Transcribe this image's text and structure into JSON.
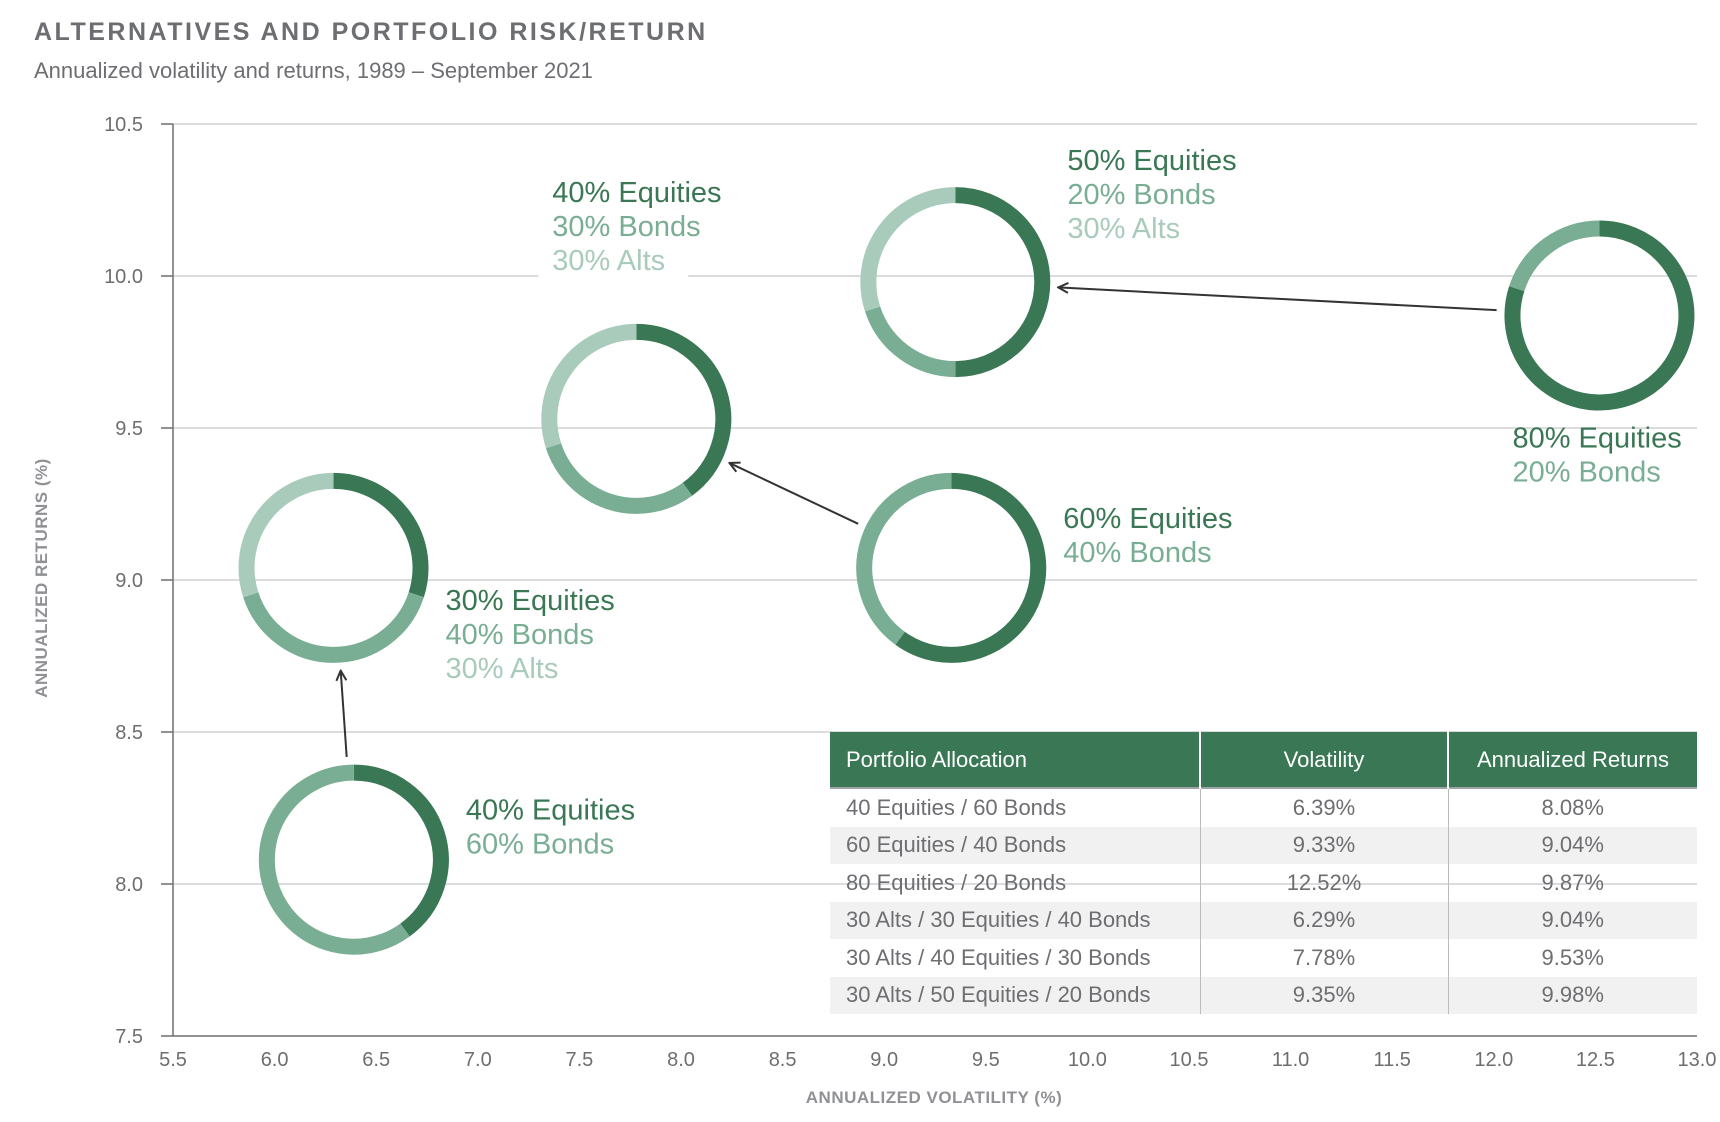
{
  "header": {
    "title": "ALTERNATIVES AND PORTFOLIO RISK/RETURN",
    "subtitle": "Annualized volatility and returns, 1989 – September 2021"
  },
  "colors": {
    "equities": "#3a7754",
    "bonds": "#79ae94",
    "alts": "#a9cbbb",
    "gridline": "#cfd0d2",
    "axis": "#6d6e71",
    "arrow": "#333333"
  },
  "chart_data": {
    "type": "scatter",
    "xlabel": "ANNUALIZED VOLATILITY (%)",
    "ylabel": "ANNUALIZED RETURNS (%)",
    "xlim": [
      5.5,
      13.0
    ],
    "ylim": [
      7.5,
      10.5
    ],
    "x_ticks": [
      "5.5",
      "6.0",
      "6.5",
      "7.0",
      "7.5",
      "8.0",
      "8.5",
      "9.0",
      "9.5",
      "10.0",
      "10.5",
      "11.0",
      "11.5",
      "12.0",
      "12.5",
      "13.0"
    ],
    "y_ticks": [
      "7.5",
      "8.0",
      "8.5",
      "9.0",
      "9.5",
      "10.0",
      "10.5"
    ],
    "grid": "horizontal",
    "points": [
      {
        "x": 6.39,
        "y": 8.08,
        "equities": 40,
        "bonds": 60,
        "alts": 0,
        "label_lines": [
          "40% Equities",
          "60% Bonds"
        ],
        "label_side": "right"
      },
      {
        "x": 9.33,
        "y": 9.04,
        "equities": 60,
        "bonds": 40,
        "alts": 0,
        "label_lines": [
          "60% Equities",
          "40% Bonds"
        ],
        "label_side": "right"
      },
      {
        "x": 12.52,
        "y": 9.87,
        "equities": 80,
        "bonds": 20,
        "alts": 0,
        "label_lines": [
          "80% Equities",
          "20% Bonds"
        ],
        "label_side": "below"
      },
      {
        "x": 6.29,
        "y": 9.04,
        "equities": 30,
        "bonds": 40,
        "alts": 30,
        "label_lines": [
          "30% Equities",
          "40% Bonds",
          "30% Alts"
        ],
        "label_side": "right"
      },
      {
        "x": 7.78,
        "y": 9.53,
        "equities": 40,
        "bonds": 30,
        "alts": 30,
        "label_lines": [
          "40% Equities",
          "30% Bonds",
          "30% Alts"
        ],
        "label_side": "above"
      },
      {
        "x": 9.35,
        "y": 9.98,
        "equities": 50,
        "bonds": 20,
        "alts": 30,
        "label_lines": [
          "50% Equities",
          "20% Bonds",
          "30% Alts"
        ],
        "label_side": "right"
      }
    ],
    "arrows": [
      {
        "from": 0,
        "to": 3
      },
      {
        "from": 1,
        "to": 4
      },
      {
        "from": 2,
        "to": 5
      }
    ]
  },
  "table": {
    "headers": [
      "Portfolio Allocation",
      "Volatility",
      "Annualized Returns"
    ],
    "rows": [
      [
        "40 Equities / 60 Bonds",
        "6.39%",
        "8.08%"
      ],
      [
        "60 Equities / 40 Bonds",
        "9.33%",
        "9.04%"
      ],
      [
        "80 Equities / 20 Bonds",
        "12.52%",
        "9.87%"
      ],
      [
        "30 Alts / 30 Equities / 40 Bonds",
        "6.29%",
        "9.04%"
      ],
      [
        "30 Alts / 40 Equities / 30 Bonds",
        "7.78%",
        "9.53%"
      ],
      [
        "30 Alts / 50 Equities / 20 Bonds",
        "9.35%",
        "9.98%"
      ]
    ]
  }
}
